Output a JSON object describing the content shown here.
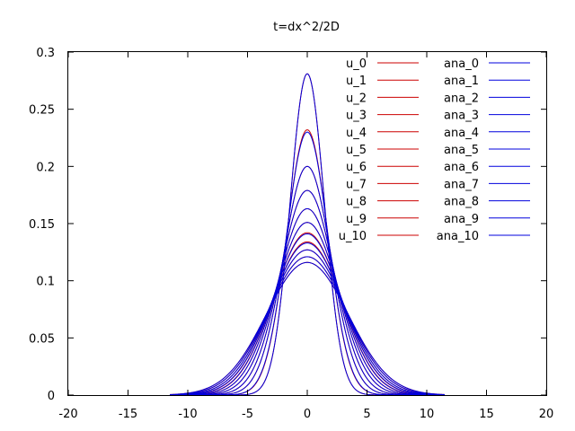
{
  "chart_data": {
    "type": "line",
    "title": "t=dx^2/2D",
    "xlabel": "",
    "ylabel": "",
    "xlim": [
      -20,
      20
    ],
    "ylim": [
      0,
      0.3
    ],
    "x_ticks": [
      -20,
      -15,
      -10,
      -5,
      0,
      5,
      10,
      15,
      20
    ],
    "y_ticks": [
      0,
      0.05,
      0.1,
      0.15,
      0.2,
      0.25,
      0.3
    ],
    "x_tick_labels": [
      "-20",
      "-15",
      "-10",
      "-5",
      "0",
      "5",
      "10",
      "15",
      "20"
    ],
    "y_tick_labels": [
      "0",
      "0.05",
      "0.1",
      "0.15",
      "0.2",
      "0.25",
      "0.3"
    ],
    "grid": false,
    "legend_position": "top-right",
    "curve_shape": "gaussian centered at x=0, peak value equals series value",
    "numeric_series": [
      {
        "name": "u_0",
        "color": "#cc0000",
        "peak": 0.281
      },
      {
        "name": "u_1",
        "color": "#cc0000",
        "peak": 0.232
      },
      {
        "name": "u_2",
        "color": "#cc0000",
        "peak": 0.2
      },
      {
        "name": "u_3",
        "color": "#cc0000",
        "peak": 0.179
      },
      {
        "name": "u_4",
        "color": "#cc0000",
        "peak": 0.163
      },
      {
        "name": "u_5",
        "color": "#cc0000",
        "peak": 0.151
      },
      {
        "name": "u_6",
        "color": "#cc0000",
        "peak": 0.142
      },
      {
        "name": "u_7",
        "color": "#cc0000",
        "peak": 0.134
      },
      {
        "name": "u_8",
        "color": "#cc0000",
        "peak": 0.127
      },
      {
        "name": "u_9",
        "color": "#cc0000",
        "peak": 0.121
      },
      {
        "name": "u_10",
        "color": "#cc0000",
        "peak": 0.116
      }
    ],
    "analytic_series": [
      {
        "name": "ana_0",
        "color": "#0000dd",
        "peak": 0.281
      },
      {
        "name": "ana_1",
        "color": "#0000dd",
        "peak": 0.23
      },
      {
        "name": "ana_2",
        "color": "#0000dd",
        "peak": 0.2
      },
      {
        "name": "ana_3",
        "color": "#0000dd",
        "peak": 0.179
      },
      {
        "name": "ana_4",
        "color": "#0000dd",
        "peak": 0.163
      },
      {
        "name": "ana_5",
        "color": "#0000dd",
        "peak": 0.151
      },
      {
        "name": "ana_6",
        "color": "#0000dd",
        "peak": 0.141
      },
      {
        "name": "ana_7",
        "color": "#0000dd",
        "peak": 0.133
      },
      {
        "name": "ana_8",
        "color": "#0000dd",
        "peak": 0.127
      },
      {
        "name": "ana_9",
        "color": "#0000dd",
        "peak": 0.121
      },
      {
        "name": "ana_10",
        "color": "#0000dd",
        "peak": 0.116
      }
    ]
  }
}
